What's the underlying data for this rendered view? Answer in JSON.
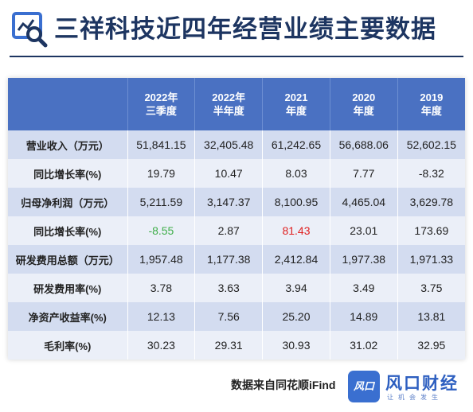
{
  "header": {
    "title": "三祥科技近四年经营业绩主要数据",
    "icon": "chart-search-icon"
  },
  "table": {
    "columns": [
      {
        "line1": "",
        "line2": ""
      },
      {
        "line1": "2022年",
        "line2": "三季度"
      },
      {
        "line1": "2022年",
        "line2": "半年度"
      },
      {
        "line1": "2021",
        "line2": "年度"
      },
      {
        "line1": "2020",
        "line2": "年度"
      },
      {
        "line1": "2019",
        "line2": "年度"
      }
    ],
    "rows": [
      {
        "label": "营业收入（万元）",
        "values": [
          "51,841.15",
          "32,405.48",
          "61,242.65",
          "56,688.06",
          "52,602.15"
        ]
      },
      {
        "label": "同比增长率(%)",
        "values": [
          "19.79",
          "10.47",
          "8.03",
          "7.77",
          "-8.32"
        ]
      },
      {
        "label": "归母净利润（万元）",
        "values": [
          "5,211.59",
          "3,147.37",
          "8,100.95",
          "4,465.04",
          "3,629.78"
        ]
      },
      {
        "label": "同比增长率(%)",
        "values": [
          "-8.55",
          "2.87",
          "81.43",
          "23.01",
          "173.69"
        ]
      },
      {
        "label": "研发费用总额（万元）",
        "values": [
          "1,957.48",
          "1,177.38",
          "2,412.84",
          "1,977.38",
          "1,971.33"
        ]
      },
      {
        "label": "研发费用率(%)",
        "values": [
          "3.78",
          "3.63",
          "3.94",
          "3.49",
          "3.75"
        ]
      },
      {
        "label": "净资产收益率(%)",
        "values": [
          "12.13",
          "7.56",
          "25.20",
          "14.89",
          "13.81"
        ]
      },
      {
        "label": "毛利率(%)",
        "values": [
          "30.23",
          "29.31",
          "30.93",
          "31.02",
          "32.95"
        ]
      }
    ],
    "highlight_colors": {
      "green": "#3fae49",
      "red": "#e02020"
    }
  },
  "footer": {
    "source": "数据来自同花顺iFind",
    "brand_logo_text": "风口",
    "brand_name": "风口财经",
    "brand_slogan": "让机会发生"
  },
  "colors": {
    "title": "#1d3561",
    "header_bg": "#4a71c2",
    "row_dark": "#d3dcf0",
    "row_light": "#ebeff8",
    "brand": "#2d5fc0"
  }
}
